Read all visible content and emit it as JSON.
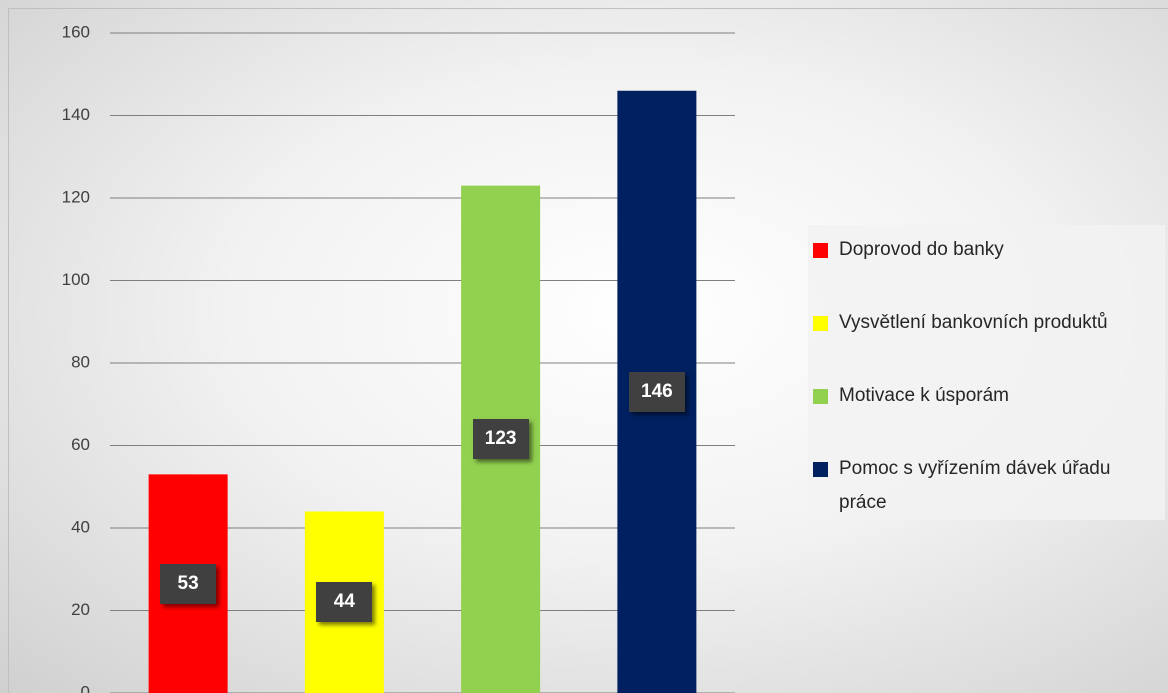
{
  "chart_data": {
    "type": "bar",
    "series": [
      {
        "name": "Doprovod do banky",
        "color": "#ff0000",
        "values": [
          53
        ]
      },
      {
        "name": "Vysvětlení bankovních produktů",
        "color": "#ffff00",
        "values": [
          44
        ]
      },
      {
        "name": "Motivace k úsporám",
        "color": "#92d050",
        "values": [
          123
        ]
      },
      {
        "name": "Pomoc s vyřízením dávek úřadu práce",
        "color": "#002060",
        "values": [
          146
        ]
      }
    ],
    "ylim": [
      0,
      160
    ],
    "yticks": [
      0,
      20,
      40,
      60,
      80,
      100,
      120,
      140,
      160
    ],
    "grid": true,
    "legend": "right"
  }
}
